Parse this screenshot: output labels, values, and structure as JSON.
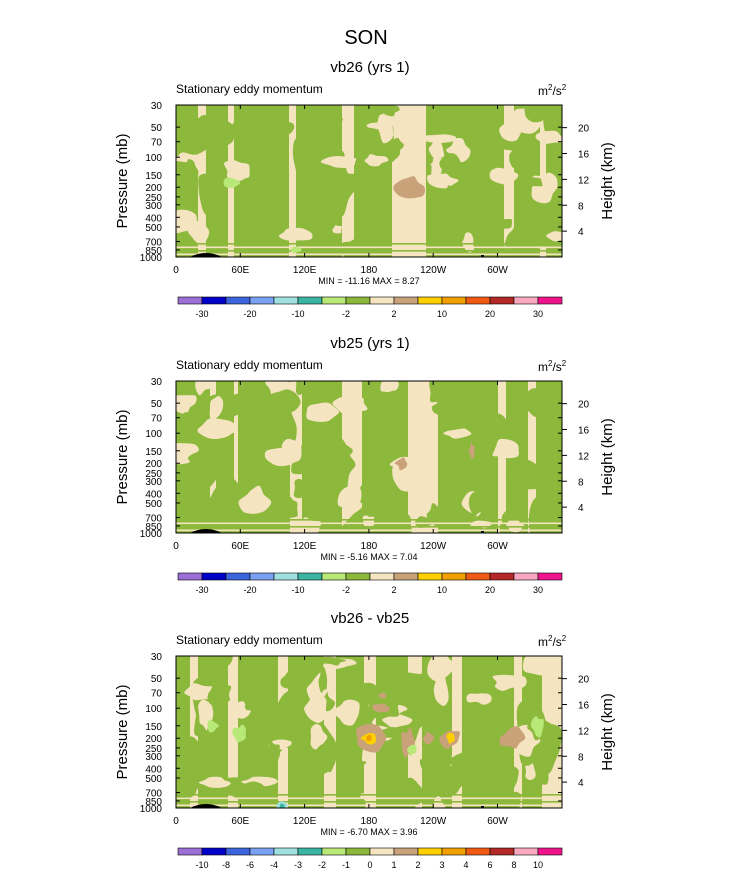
{
  "figure": {
    "title": "SON"
  },
  "palette": {
    "plot_colors": [
      "#f4e4c0",
      "#8cb83c",
      "#c9a27a",
      "#b8e878",
      "#ffd000",
      "#f0a000",
      "#3cb4a4",
      "#a0e0e0"
    ]
  },
  "chart_data": [
    {
      "type": "contour",
      "title": "vb26 (yrs 1)",
      "subtitle_left": "Stationary eddy momentum",
      "units_base": "m",
      "units_exp": "2",
      "units_base2": "/s",
      "units_exp2": "2",
      "ylabel": "Pressure (mb)",
      "y2label": "Height (km)",
      "pressure_ticks": [
        "30",
        "50",
        "70",
        "100",
        "150",
        "200",
        "250",
        "300",
        "400",
        "500",
        "700",
        "850",
        "1000"
      ],
      "height_ticks": [
        "20",
        "16",
        "12",
        "8",
        "4"
      ],
      "x_ticks": [
        "0",
        "60E",
        "120E",
        "180",
        "120W",
        "60W"
      ],
      "min_max": "MIN = -11.16  MAX =  8.27",
      "colorbar_colors": [
        "#9b6fd6",
        "#0000c8",
        "#3c64dc",
        "#7aa0f0",
        "#a0e0e0",
        "#3cb4a4",
        "#b8e878",
        "#8cb83c",
        "#f4e4c0",
        "#c9a27a",
        "#ffd000",
        "#f0a000",
        "#f05a14",
        "#b42828",
        "#f8a8c0",
        "#f0148c"
      ],
      "colorbar_labels": [
        "-30",
        "-20",
        "-10",
        "-2",
        "2",
        "10",
        "20",
        "30"
      ]
    },
    {
      "type": "contour",
      "title": "vb25 (yrs 1)",
      "subtitle_left": "Stationary eddy momentum",
      "units_base": "m",
      "units_exp": "2",
      "units_base2": "/s",
      "units_exp2": "2",
      "ylabel": "Pressure (mb)",
      "y2label": "Height (km)",
      "pressure_ticks": [
        "30",
        "50",
        "70",
        "100",
        "150",
        "200",
        "250",
        "300",
        "400",
        "500",
        "700",
        "850",
        "1000"
      ],
      "height_ticks": [
        "20",
        "16",
        "12",
        "8",
        "4"
      ],
      "x_ticks": [
        "0",
        "60E",
        "120E",
        "180",
        "120W",
        "60W"
      ],
      "min_max": "MIN = -5.16  MAX =  7.04",
      "colorbar_colors": [
        "#9b6fd6",
        "#0000c8",
        "#3c64dc",
        "#7aa0f0",
        "#a0e0e0",
        "#3cb4a4",
        "#b8e878",
        "#8cb83c",
        "#f4e4c0",
        "#c9a27a",
        "#ffd000",
        "#f0a000",
        "#f05a14",
        "#b42828",
        "#f8a8c0",
        "#f0148c"
      ],
      "colorbar_labels": [
        "-30",
        "-20",
        "-10",
        "-2",
        "2",
        "10",
        "20",
        "30"
      ]
    },
    {
      "type": "contour",
      "title": "vb26 - vb25",
      "subtitle_left": "Stationary eddy momentum",
      "units_base": "m",
      "units_exp": "2",
      "units_base2": "/s",
      "units_exp2": "2",
      "ylabel": "Pressure (mb)",
      "y2label": "Height (km)",
      "pressure_ticks": [
        "30",
        "50",
        "70",
        "100",
        "150",
        "200",
        "250",
        "300",
        "400",
        "500",
        "700",
        "850",
        "1000"
      ],
      "height_ticks": [
        "20",
        "16",
        "12",
        "8",
        "4"
      ],
      "x_ticks": [
        "0",
        "60E",
        "120E",
        "180",
        "120W",
        "60W"
      ],
      "min_max": "MIN = -6.70  MAX =  3.96",
      "colorbar_colors": [
        "#9b6fd6",
        "#0000c8",
        "#3c64dc",
        "#7aa0f0",
        "#a0e0e0",
        "#3cb4a4",
        "#b8e878",
        "#8cb83c",
        "#f4e4c0",
        "#c9a27a",
        "#ffd000",
        "#f0a000",
        "#f05a14",
        "#b42828",
        "#f8a8c0",
        "#f0148c"
      ],
      "colorbar_labels": [
        "-10",
        "-8",
        "-6",
        "-4",
        "-3",
        "-2",
        "-1",
        "0",
        "1",
        "2",
        "3",
        "4",
        "6",
        "8",
        "10"
      ]
    }
  ]
}
